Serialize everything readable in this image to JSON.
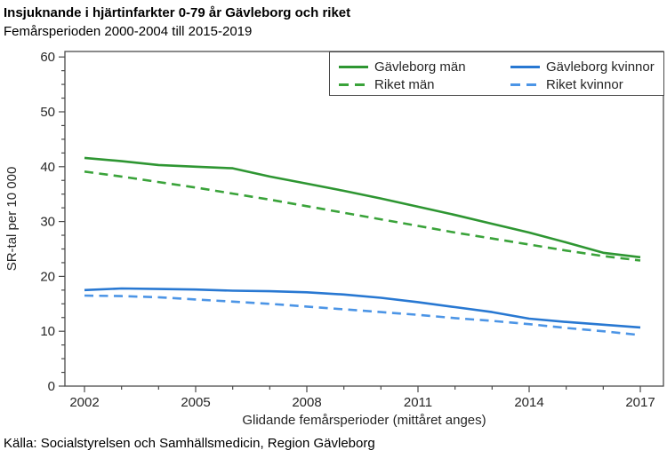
{
  "header": {
    "title": "Insjuknande i hjärtinfarkter 0-79 år Gävleborg och riket",
    "subtitle": "Femårsperioden 2000-2004 till 2015-2019"
  },
  "footer": {
    "source": "Källa: Socialstyrelsen och Samhällsmedicin, Region Gävleborg"
  },
  "chart_data": {
    "type": "line",
    "title": "Insjuknande i hjärtinfarkter 0-79 år Gävleborg och riket",
    "subtitle": "Femårsperioden 2000-2004 till 2015-2019",
    "xlabel": "Glidande femårsperioder (mittåret anges)",
    "ylabel": "SR-tal per 10 000",
    "x": [
      2002,
      2003,
      2004,
      2005,
      2006,
      2007,
      2008,
      2009,
      2010,
      2011,
      2012,
      2013,
      2014,
      2015,
      2016,
      2017
    ],
    "x_major_ticks": [
      2002,
      2005,
      2008,
      2011,
      2014,
      2017
    ],
    "ylim": [
      0,
      60
    ],
    "y_major_step": 10,
    "y_minor_step": 2.5,
    "grid": false,
    "legend_position": "top-right framed inside plot",
    "axis_color": "#4a4a4a",
    "text_color": "#262626",
    "series": [
      {
        "name": "Gävleborg män",
        "line_style": "solid",
        "color": "#2E9632",
        "values": [
          41.6,
          41.0,
          40.3,
          40.0,
          39.7,
          38.2,
          36.9,
          35.6,
          34.2,
          32.7,
          31.2,
          29.6,
          28.0,
          26.2,
          24.3,
          23.5
        ]
      },
      {
        "name": "Riket män",
        "line_style": "dashed",
        "color": "#3AA33A",
        "values": [
          39.1,
          38.2,
          37.2,
          36.2,
          35.1,
          34.0,
          32.8,
          31.6,
          30.4,
          29.2,
          28.0,
          26.9,
          25.8,
          24.7,
          23.7,
          22.9
        ]
      },
      {
        "name": "Gävleborg kvinnor",
        "line_style": "solid",
        "color": "#2878D2",
        "values": [
          17.5,
          17.8,
          17.7,
          17.6,
          17.4,
          17.3,
          17.1,
          16.7,
          16.1,
          15.3,
          14.4,
          13.5,
          12.3,
          11.7,
          11.2,
          10.7
        ]
      },
      {
        "name": "Riket kvinnor",
        "line_style": "dashed",
        "color": "#4C95E6",
        "values": [
          16.5,
          16.4,
          16.2,
          15.8,
          15.4,
          15.0,
          14.5,
          14.0,
          13.5,
          13.0,
          12.4,
          11.9,
          11.3,
          10.6,
          10.0,
          9.3
        ]
      }
    ]
  }
}
